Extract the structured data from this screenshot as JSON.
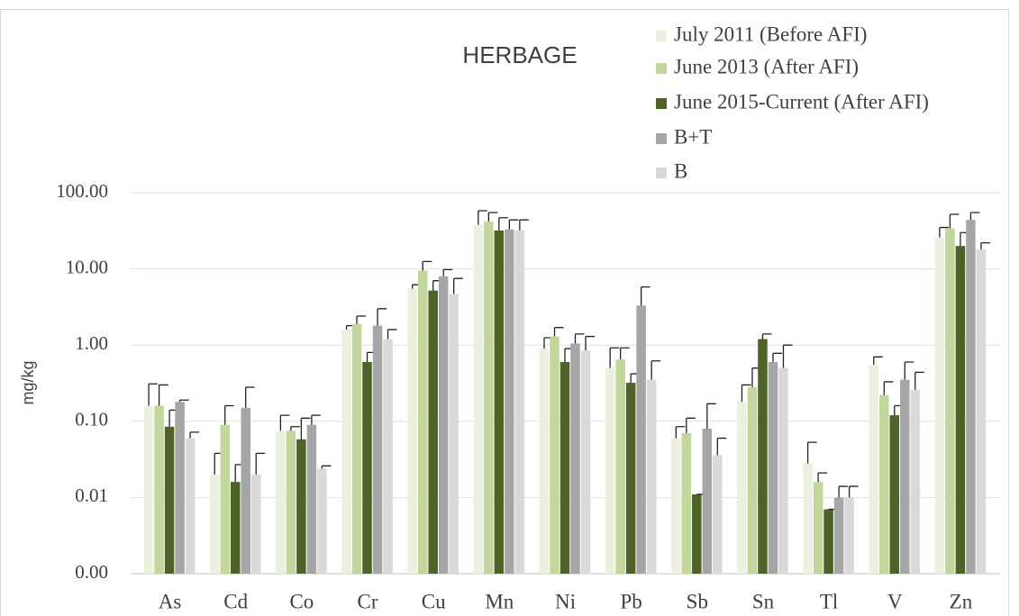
{
  "chart_data": {
    "type": "bar",
    "title": "HERBAGE",
    "y_label": "mg/kg",
    "log_scale": true,
    "grid": true,
    "categories": [
      "As",
      "Cd",
      "Co",
      "Cr",
      "Cu",
      "Mn",
      "Ni",
      "Pb",
      "Sb",
      "Sn",
      "Tl",
      "V",
      "Zn"
    ],
    "ylim": [
      0.001,
      100
    ],
    "yticks": [
      {
        "value": 0.001,
        "label": "0.00"
      },
      {
        "value": 0.01,
        "label": "0.01"
      },
      {
        "value": 0.1,
        "label": "0.10"
      },
      {
        "value": 1,
        "label": "1.00"
      },
      {
        "value": 10,
        "label": "10.00"
      },
      {
        "value": 100,
        "label": "100.00"
      }
    ],
    "series": [
      {
        "name": "July 2011 (Before AFI)",
        "color": "#ebf1de",
        "values": [
          0.16,
          0.02,
          0.075,
          1.6,
          5.5,
          38,
          0.9,
          0.5,
          0.06,
          0.18,
          0.028,
          0.55,
          26
        ],
        "errors": [
          0.15,
          0.018,
          0.045,
          0.2,
          0.7,
          20,
          0.35,
          0.42,
          0.025,
          0.12,
          0.025,
          0.15,
          9
        ]
      },
      {
        "name": "June 2013 (After AFI)",
        "color": "#c3d69b",
        "values": [
          0.16,
          0.09,
          0.075,
          1.9,
          9.5,
          42,
          1.3,
          0.65,
          0.07,
          0.28,
          0.016,
          0.22,
          34
        ],
        "errors": [
          0.14,
          0.07,
          0.01,
          0.5,
          3.0,
          13,
          0.4,
          0.27,
          0.04,
          0.22,
          0.005,
          0.11,
          18
        ]
      },
      {
        "name": "June 2015-Current (After AFI)",
        "color": "#4f6228",
        "values": [
          0.085,
          0.016,
          0.058,
          0.6,
          5.2,
          32,
          0.6,
          0.32,
          0.011,
          1.2,
          0.007,
          0.12,
          20
        ],
        "errors": [
          0.055,
          0.011,
          0.052,
          0.2,
          1.8,
          15,
          0.3,
          0.1,
          0,
          0.2,
          0,
          0.04,
          10
        ]
      },
      {
        "name": "B+T",
        "color": "#a6a6a6",
        "values": [
          0.18,
          0.15,
          0.09,
          1.8,
          8.0,
          33,
          1.05,
          3.3,
          0.08,
          0.6,
          0.01,
          0.35,
          44
        ],
        "errors": [
          0.01,
          0.13,
          0.03,
          1.2,
          1.8,
          11,
          0.35,
          2.5,
          0.09,
          0.18,
          0.004,
          0.25,
          11
        ]
      },
      {
        "name": "B",
        "color": "#d9d9d9",
        "values": [
          0.06,
          0.02,
          0.024,
          1.2,
          4.7,
          32,
          0.85,
          0.35,
          0.036,
          0.5,
          0.01,
          0.26,
          18
        ],
        "errors": [
          0.012,
          0.018,
          0.002,
          0.4,
          2.8,
          12,
          0.45,
          0.27,
          0.024,
          0.5,
          0.004,
          0.18,
          4
        ]
      }
    ]
  }
}
